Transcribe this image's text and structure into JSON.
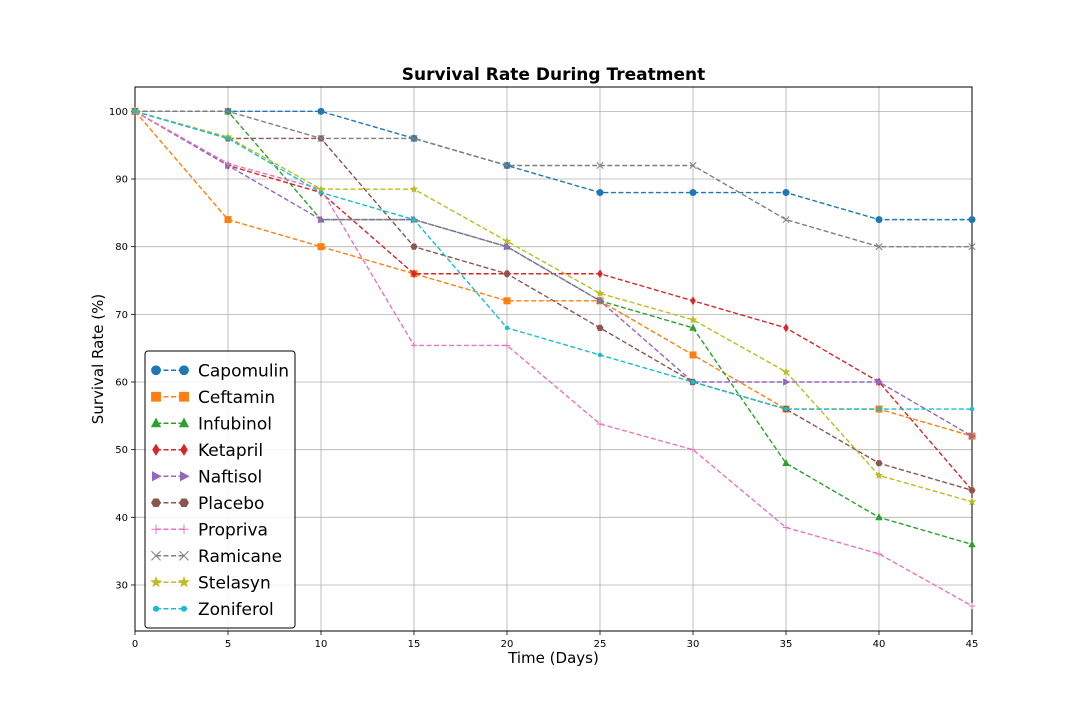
{
  "chart_data": {
    "type": "line",
    "title": "Survival Rate During Treatment",
    "xlabel": "Time (Days)",
    "ylabel": "Survival Rate (%)",
    "xlim": [
      0,
      45
    ],
    "ylim": [
      23.2,
      103.6
    ],
    "xticks": [
      0,
      5,
      10,
      15,
      20,
      25,
      30,
      35,
      40,
      45
    ],
    "yticks": [
      30,
      40,
      50,
      60,
      70,
      80,
      90,
      100
    ],
    "grid": true,
    "legend_position": "lower-left",
    "x": [
      0,
      5,
      10,
      15,
      20,
      25,
      30,
      35,
      40,
      45
    ],
    "series": [
      {
        "name": "Capomulin",
        "color": "#1f77b4",
        "marker": "circle",
        "values": [
          100,
          100,
          100,
          96,
          92,
          88,
          88,
          88,
          84,
          84
        ]
      },
      {
        "name": "Ceftamin",
        "color": "#ff7f0e",
        "marker": "square",
        "values": [
          100,
          84,
          80,
          76,
          72,
          72,
          64,
          56,
          56,
          52
        ]
      },
      {
        "name": "Infubinol",
        "color": "#2ca02c",
        "marker": "triangle-up",
        "values": [
          100,
          100,
          84,
          84,
          80,
          72,
          68,
          48,
          40,
          36
        ]
      },
      {
        "name": "Ketapril",
        "color": "#d62728",
        "marker": "diamond",
        "values": [
          100,
          92,
          88,
          76,
          76,
          76,
          72,
          68,
          60,
          44
        ]
      },
      {
        "name": "Naftisol",
        "color": "#9467bd",
        "marker": "triangle-right",
        "values": [
          100,
          92,
          84,
          84,
          80,
          72,
          60,
          60,
          60,
          52
        ]
      },
      {
        "name": "Placebo",
        "color": "#8c564b",
        "marker": "hexagon",
        "values": [
          100,
          96,
          96,
          80,
          76,
          68,
          60,
          56,
          48,
          44
        ]
      },
      {
        "name": "Propriva",
        "color": "#e377c2",
        "marker": "plus",
        "values": [
          100,
          92.3,
          88.5,
          65.4,
          65.4,
          53.8,
          50,
          38.5,
          34.6,
          26.9
        ]
      },
      {
        "name": "Ramicane",
        "color": "#7f7f7f",
        "marker": "x",
        "values": [
          100,
          100,
          96,
          96,
          92,
          92,
          92,
          84,
          80,
          80
        ]
      },
      {
        "name": "Stelasyn",
        "color": "#bcbd22",
        "marker": "star",
        "values": [
          100,
          96.2,
          88.5,
          88.5,
          80.8,
          73.1,
          69.2,
          61.5,
          46.2,
          42.3
        ]
      },
      {
        "name": "Zoniferol",
        "color": "#17becf",
        "marker": "dot",
        "values": [
          100,
          96,
          88,
          84,
          68,
          64,
          60,
          56,
          56,
          56
        ]
      }
    ]
  }
}
